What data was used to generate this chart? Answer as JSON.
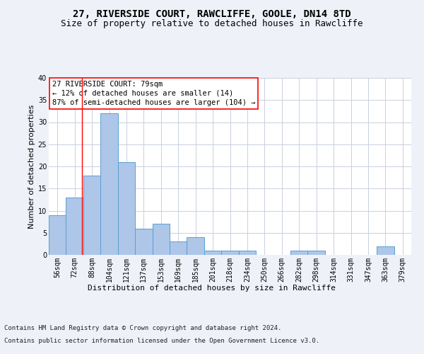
{
  "title_line1": "27, RIVERSIDE COURT, RAWCLIFFE, GOOLE, DN14 8TD",
  "title_line2": "Size of property relative to detached houses in Rawcliffe",
  "xlabel": "Distribution of detached houses by size in Rawcliffe",
  "ylabel": "Number of detached properties",
  "footer_line1": "Contains HM Land Registry data © Crown copyright and database right 2024.",
  "footer_line2": "Contains public sector information licensed under the Open Government Licence v3.0.",
  "categories": [
    "56sqm",
    "72sqm",
    "88sqm",
    "104sqm",
    "121sqm",
    "137sqm",
    "153sqm",
    "169sqm",
    "185sqm",
    "201sqm",
    "218sqm",
    "234sqm",
    "250sqm",
    "266sqm",
    "282sqm",
    "298sqm",
    "314sqm",
    "331sqm",
    "347sqm",
    "363sqm",
    "379sqm"
  ],
  "values": [
    9,
    13,
    18,
    32,
    21,
    6,
    7,
    3,
    4,
    1,
    1,
    1,
    0,
    0,
    1,
    1,
    0,
    0,
    0,
    2,
    0
  ],
  "bar_color": "#aec6e8",
  "bar_edge_color": "#5a9fd4",
  "annotation_line1": "27 RIVERSIDE COURT: 79sqm",
  "annotation_line2": "← 12% of detached houses are smaller (14)",
  "annotation_line3": "87% of semi-detached houses are larger (104) →",
  "annotation_box_color": "white",
  "annotation_box_edge_color": "red",
  "marker_line_color": "red",
  "ylim": [
    0,
    40
  ],
  "yticks": [
    0,
    5,
    10,
    15,
    20,
    25,
    30,
    35,
    40
  ],
  "bg_color": "#eef2f8",
  "plot_bg_color": "white",
  "grid_color": "#c8d0de",
  "title_fontsize": 10,
  "subtitle_fontsize": 9,
  "axis_label_fontsize": 8,
  "tick_fontsize": 7,
  "annotation_fontsize": 7.5,
  "footer_fontsize": 6.5
}
